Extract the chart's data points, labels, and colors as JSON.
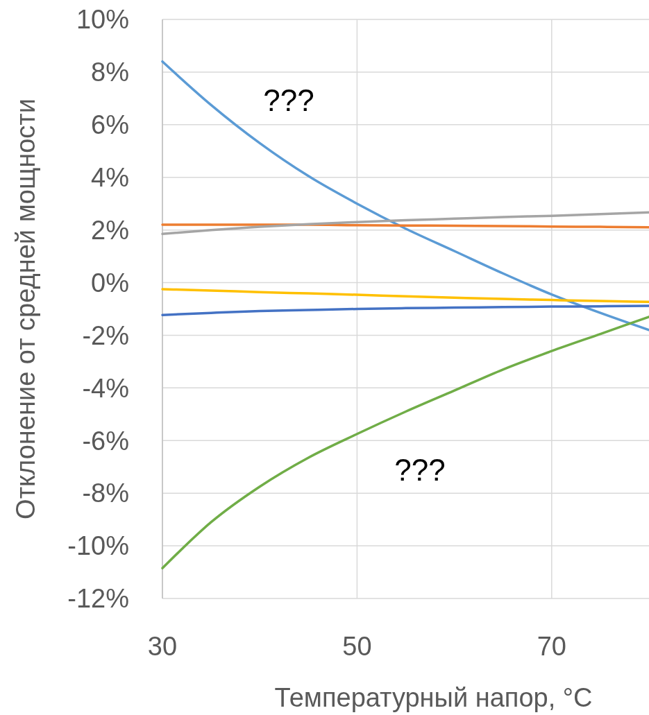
{
  "chart_data": {
    "type": "line",
    "xlabel": "Температурный напор, °C",
    "ylabel": "Отклонение от средней мощности",
    "xlim": [
      30,
      80
    ],
    "xticks": [
      30,
      50,
      70
    ],
    "ylim": [
      -12,
      10
    ],
    "yticks": [
      {
        "value": -12,
        "label": "-12%"
      },
      {
        "value": -10,
        "label": "-10%"
      },
      {
        "value": -8,
        "label": "-8%"
      },
      {
        "value": -6,
        "label": "-6%"
      },
      {
        "value": -4,
        "label": "-4%"
      },
      {
        "value": -2,
        "label": "-2%"
      },
      {
        "value": 0,
        "label": "0%"
      },
      {
        "value": 2,
        "label": "2%"
      },
      {
        "value": 4,
        "label": "4%"
      },
      {
        "value": 6,
        "label": "6%"
      },
      {
        "value": 8,
        "label": "8%"
      },
      {
        "value": 10,
        "label": "10%"
      }
    ],
    "grid": true,
    "x": [
      30,
      35,
      40,
      45,
      50,
      55,
      60,
      65,
      70,
      75,
      80
    ],
    "series": [
      {
        "color": "#5b9bd5",
        "values": [
          8.4,
          6.75,
          5.3,
          4.05,
          3.0,
          2.05,
          1.2,
          0.35,
          -0.45,
          -1.15,
          -1.8
        ]
      },
      {
        "color": "#ed7d31",
        "values": [
          2.2,
          2.2,
          2.2,
          2.2,
          2.18,
          2.17,
          2.16,
          2.15,
          2.13,
          2.12,
          2.1
        ]
      },
      {
        "color": "#a5a5a5",
        "values": [
          1.85,
          2.0,
          2.12,
          2.22,
          2.3,
          2.37,
          2.43,
          2.49,
          2.54,
          2.6,
          2.67
        ]
      },
      {
        "color": "#ffc000",
        "values": [
          -0.25,
          -0.3,
          -0.36,
          -0.41,
          -0.46,
          -0.52,
          -0.57,
          -0.62,
          -0.66,
          -0.7,
          -0.73
        ]
      },
      {
        "color": "#4472c4",
        "values": [
          -1.23,
          -1.15,
          -1.08,
          -1.04,
          -1.0,
          -0.97,
          -0.95,
          -0.93,
          -0.91,
          -0.9,
          -0.88
        ]
      },
      {
        "color": "#70ad47",
        "values": [
          -10.85,
          -9.1,
          -7.75,
          -6.65,
          -5.75,
          -4.9,
          -4.1,
          -3.3,
          -2.6,
          -1.95,
          -1.3
        ]
      }
    ],
    "annotations": [
      "???",
      "???"
    ]
  }
}
